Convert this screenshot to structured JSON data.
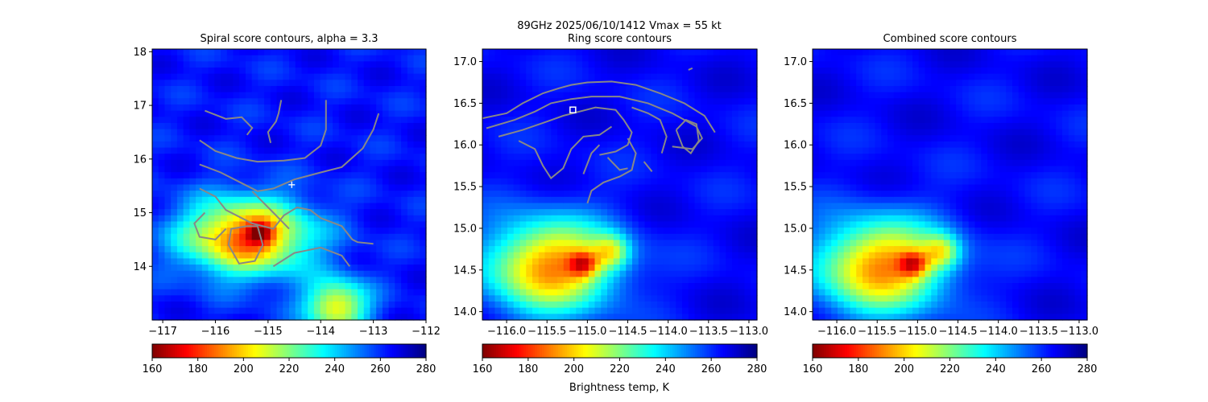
{
  "figure": {
    "suptitle_line1": "89GHz  2025/06/10/1412    Vmax = 55 kt",
    "colorbar_label": "Brightness temp, K"
  },
  "colormap": {
    "name": "jet_r",
    "vmin": 160,
    "vmax": 280,
    "stops": [
      "#7f0000",
      "#ff0000",
      "#ff8000",
      "#ffff00",
      "#80ff80",
      "#00ffff",
      "#0080ff",
      "#0000ff",
      "#00007f"
    ]
  },
  "contour_color": "#888888",
  "chart_data": [
    {
      "type": "heatmap",
      "title": "Spiral score contours, alpha =  3.3",
      "xlim": [
        -117.2,
        -112.0
      ],
      "ylim": [
        13.0,
        18.05
      ],
      "xticks": [
        -117,
        -116,
        -115,
        -114,
        -113,
        -112
      ],
      "xtick_labels": [
        "−117",
        "−116",
        "−115",
        "−114",
        "−113",
        "−112"
      ],
      "yticks": [
        14,
        15,
        16,
        17,
        18
      ],
      "ytick_labels": [
        "14",
        "15",
        "16",
        "17",
        "18"
      ],
      "background_K": 263,
      "blobs": [
        {
          "x": -115.4,
          "y": 14.55,
          "rx": 1.2,
          "ry": 0.7,
          "amp": 80
        },
        {
          "x": -115.15,
          "y": 14.62,
          "rx": 0.25,
          "ry": 0.2,
          "amp": 35
        },
        {
          "x": -113.7,
          "y": 13.25,
          "rx": 0.6,
          "ry": 0.5,
          "amp": 60
        }
      ],
      "marker": {
        "symbol": "plus",
        "x": -114.55,
        "y": 15.52
      },
      "colorbar_ticks": [
        160,
        180,
        200,
        220,
        240,
        260,
        280
      ],
      "colorbar_label_shown": false
    },
    {
      "type": "heatmap",
      "title": "Ring score contours",
      "xlim": [
        -116.3,
        -112.9
      ],
      "ylim": [
        13.9,
        17.15
      ],
      "xticks": [
        -116.0,
        -115.5,
        -115.0,
        -114.5,
        -114.0,
        -113.5,
        -113.0
      ],
      "xtick_labels": [
        "−116.0",
        "−115.5",
        "−115.0",
        "−114.5",
        "−114.0",
        "−113.5",
        "−113.0"
      ],
      "yticks": [
        14.0,
        14.5,
        15.0,
        15.5,
        16.0,
        16.5,
        17.0
      ],
      "ytick_labels": [
        "14.0",
        "14.5",
        "15.0",
        "15.5",
        "16.0",
        "16.5",
        "17.0"
      ],
      "background_K": 265,
      "blobs": [
        {
          "x": -115.45,
          "y": 14.55,
          "rx": 0.8,
          "ry": 0.55,
          "amp": 75
        },
        {
          "x": -115.05,
          "y": 14.57,
          "rx": 0.18,
          "ry": 0.15,
          "amp": 40
        },
        {
          "x": -114.7,
          "y": 14.72,
          "rx": 0.22,
          "ry": 0.2,
          "amp": 35
        }
      ],
      "marker": {
        "symbol": "square",
        "x": -115.18,
        "y": 16.42
      },
      "colorbar_ticks": [
        160,
        180,
        200,
        220,
        240,
        260,
        280
      ],
      "colorbar_label_shown": true
    },
    {
      "type": "heatmap",
      "title": "Combined score contours",
      "xlim": [
        -116.3,
        -112.9
      ],
      "ylim": [
        13.9,
        17.15
      ],
      "xticks": [
        -116.0,
        -115.5,
        -115.0,
        -114.5,
        -114.0,
        -113.5,
        -113.0
      ],
      "xtick_labels": [
        "−116.0",
        "−115.5",
        "−115.0",
        "−114.5",
        "−114.0",
        "−113.5",
        "−113.0"
      ],
      "yticks": [
        14.0,
        14.5,
        15.0,
        15.5,
        16.0,
        16.5,
        17.0
      ],
      "ytick_labels": [
        "14.0",
        "14.5",
        "15.0",
        "15.5",
        "16.0",
        "16.5",
        "17.0"
      ],
      "background_K": 265,
      "blobs": [
        {
          "x": -115.45,
          "y": 14.55,
          "rx": 0.8,
          "ry": 0.55,
          "amp": 75
        },
        {
          "x": -115.05,
          "y": 14.57,
          "rx": 0.18,
          "ry": 0.15,
          "amp": 40
        },
        {
          "x": -114.7,
          "y": 14.72,
          "rx": 0.22,
          "ry": 0.2,
          "amp": 35
        }
      ],
      "marker": null,
      "colorbar_ticks": [
        160,
        180,
        200,
        220,
        240,
        260,
        280
      ],
      "colorbar_label_shown": false
    }
  ]
}
